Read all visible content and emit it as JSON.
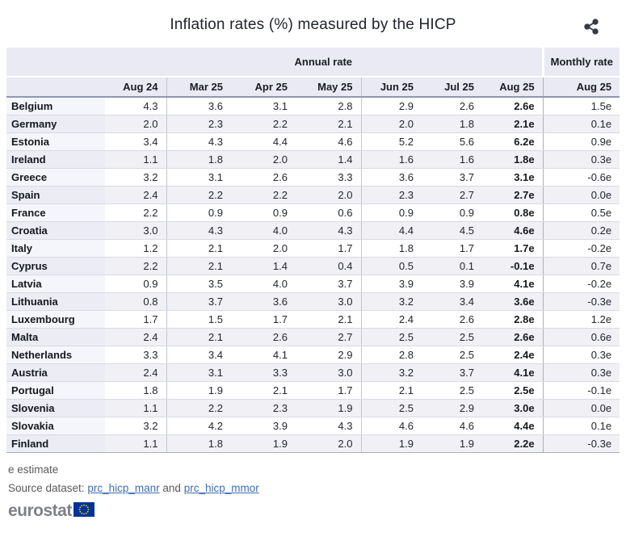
{
  "chart_data": {
    "type": "table",
    "title": "Inflation rates (%) measured by the HICP",
    "group_headers": {
      "annual": "Annual rate",
      "monthly": "Monthly rate"
    },
    "annual_columns": [
      "Aug 24",
      "Mar 25",
      "Apr 25",
      "May 25",
      "Jun 25",
      "Jul 25",
      "Aug 25"
    ],
    "monthly_column": "Aug 25",
    "unit": "%",
    "value_flag_legend": "e estimate",
    "rows": [
      {
        "country": "Belgium",
        "annual": [
          "4.3",
          "3.6",
          "3.1",
          "2.8",
          "2.9",
          "2.6",
          "2.6e"
        ],
        "monthly": "1.5e"
      },
      {
        "country": "Germany",
        "annual": [
          "2.0",
          "2.3",
          "2.2",
          "2.1",
          "2.0",
          "1.8",
          "2.1e"
        ],
        "monthly": "0.1e"
      },
      {
        "country": "Estonia",
        "annual": [
          "3.4",
          "4.3",
          "4.4",
          "4.6",
          "5.2",
          "5.6",
          "6.2e"
        ],
        "monthly": "0.9e"
      },
      {
        "country": "Ireland",
        "annual": [
          "1.1",
          "1.8",
          "2.0",
          "1.4",
          "1.6",
          "1.6",
          "1.8e"
        ],
        "monthly": "0.3e"
      },
      {
        "country": "Greece",
        "annual": [
          "3.2",
          "3.1",
          "2.6",
          "3.3",
          "3.6",
          "3.7",
          "3.1e"
        ],
        "monthly": "-0.6e"
      },
      {
        "country": "Spain",
        "annual": [
          "2.4",
          "2.2",
          "2.2",
          "2.0",
          "2.3",
          "2.7",
          "2.7e"
        ],
        "monthly": "0.0e"
      },
      {
        "country": "France",
        "annual": [
          "2.2",
          "0.9",
          "0.9",
          "0.6",
          "0.9",
          "0.9",
          "0.8e"
        ],
        "monthly": "0.5e"
      },
      {
        "country": "Croatia",
        "annual": [
          "3.0",
          "4.3",
          "4.0",
          "4.3",
          "4.4",
          "4.5",
          "4.6e"
        ],
        "monthly": "0.2e"
      },
      {
        "country": "Italy",
        "annual": [
          "1.2",
          "2.1",
          "2.0",
          "1.7",
          "1.8",
          "1.7",
          "1.7e"
        ],
        "monthly": "-0.2e"
      },
      {
        "country": "Cyprus",
        "annual": [
          "2.2",
          "2.1",
          "1.4",
          "0.4",
          "0.5",
          "0.1",
          "-0.1e"
        ],
        "monthly": "0.7e"
      },
      {
        "country": "Latvia",
        "annual": [
          "0.9",
          "3.5",
          "4.0",
          "3.7",
          "3.9",
          "3.9",
          "4.1e"
        ],
        "monthly": "-0.2e"
      },
      {
        "country": "Lithuania",
        "annual": [
          "0.8",
          "3.7",
          "3.6",
          "3.0",
          "3.2",
          "3.4",
          "3.6e"
        ],
        "monthly": "-0.3e"
      },
      {
        "country": "Luxembourg",
        "annual": [
          "1.7",
          "1.5",
          "1.7",
          "2.1",
          "2.4",
          "2.6",
          "2.8e"
        ],
        "monthly": "1.2e"
      },
      {
        "country": "Malta",
        "annual": [
          "2.4",
          "2.1",
          "2.6",
          "2.7",
          "2.5",
          "2.5",
          "2.6e"
        ],
        "monthly": "0.6e"
      },
      {
        "country": "Netherlands",
        "annual": [
          "3.3",
          "3.4",
          "4.1",
          "2.9",
          "2.8",
          "2.5",
          "2.4e"
        ],
        "monthly": "0.3e"
      },
      {
        "country": "Austria",
        "annual": [
          "2.4",
          "3.1",
          "3.3",
          "3.0",
          "3.2",
          "3.7",
          "4.1e"
        ],
        "monthly": "0.3e"
      },
      {
        "country": "Portugal",
        "annual": [
          "1.8",
          "1.9",
          "2.1",
          "1.7",
          "2.1",
          "2.5",
          "2.5e"
        ],
        "monthly": "-0.1e"
      },
      {
        "country": "Slovenia",
        "annual": [
          "1.1",
          "2.2",
          "2.3",
          "1.9",
          "2.5",
          "2.9",
          "3.0e"
        ],
        "monthly": "0.0e"
      },
      {
        "country": "Slovakia",
        "annual": [
          "3.2",
          "4.2",
          "3.9",
          "4.3",
          "4.6",
          "4.6",
          "4.4e"
        ],
        "monthly": "0.1e"
      },
      {
        "country": "Finland",
        "annual": [
          "1.1",
          "1.8",
          "1.9",
          "2.0",
          "1.9",
          "1.9",
          "2.2e"
        ],
        "monthly": "-0.3e"
      }
    ]
  },
  "footer": {
    "footnote": "e estimate",
    "source_prefix": "Source dataset:",
    "source_link_1": "prc_hicp_manr",
    "source_conjunction": "and",
    "source_link_2": "prc_hicp_mmor"
  },
  "logo": {
    "text": "eurostat"
  },
  "colors": {
    "header_bg": "#e9eaf3",
    "header_border": "#8d99af",
    "row_shaded": "#f0f0f5",
    "link": "#3e6fb5",
    "logo_gray": "#7e8187",
    "flag_blue": "#003399",
    "flag_stars": "#ffcc00",
    "share_icon": "#333b47"
  }
}
